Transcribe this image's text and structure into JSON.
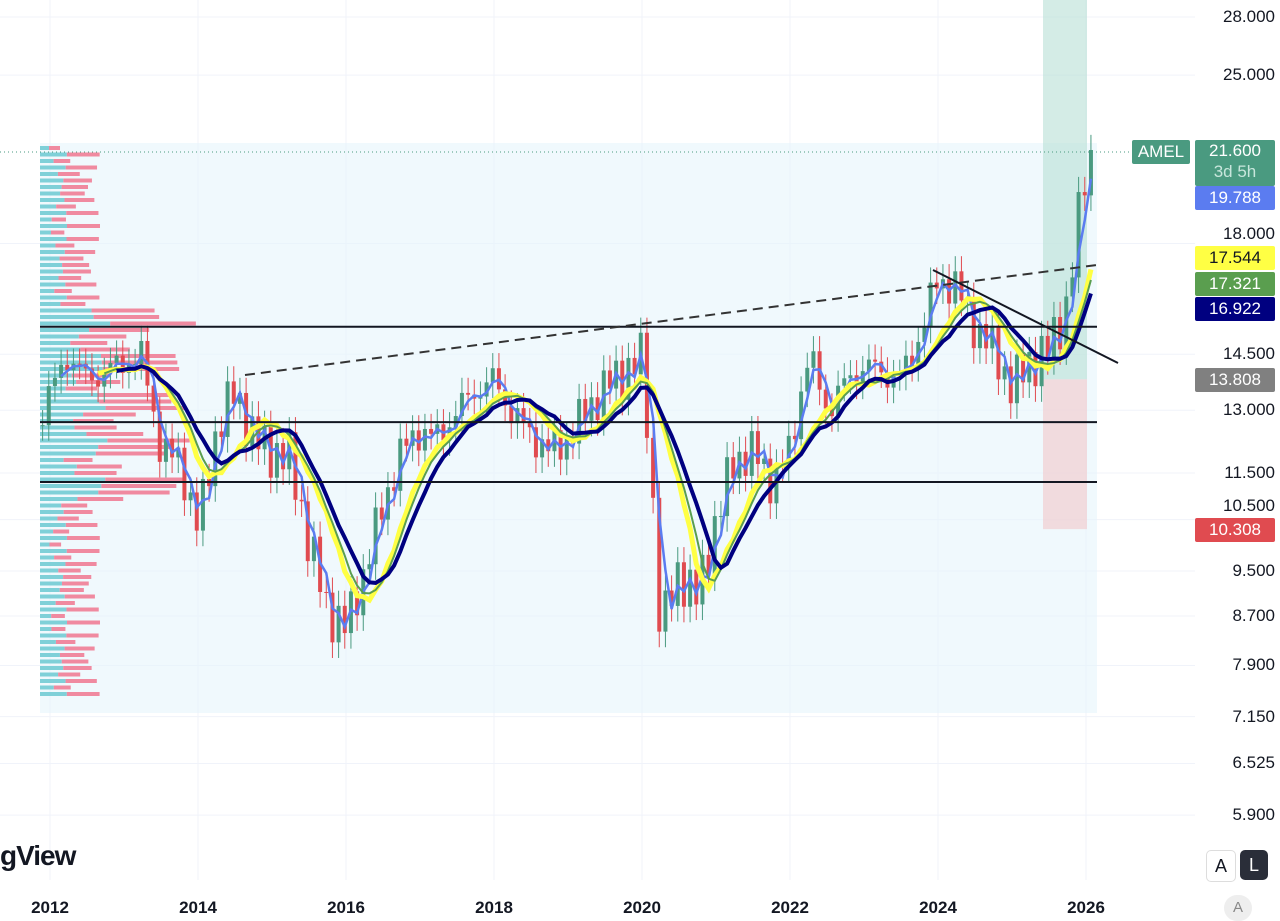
{
  "symbol": "AMEL",
  "last_price": "21.600",
  "countdown": "3d 5h",
  "brand": "gView",
  "buttons": {
    "auto": "A",
    "log": "L",
    "auto_bottom": "A"
  },
  "ma_tags": [
    {
      "value": "19.788",
      "bg": "#5b7cf0",
      "fg": "#ffffff"
    },
    {
      "value": "17.544",
      "bg": "#ffff44",
      "fg": "#131722"
    },
    {
      "value": "17.321",
      "bg": "#5a9e4f",
      "fg": "#ffffff"
    },
    {
      "value": "16.922",
      "bg": "#000080",
      "fg": "#ffffff"
    }
  ],
  "position_tags": [
    {
      "value": "13.808",
      "bg": "#808080"
    },
    {
      "value": "10.308",
      "bg": "#e04b50"
    }
  ],
  "chart_data": {
    "type": "candlestick",
    "scale": "log",
    "y_ticks": [
      "28.000",
      "25.000",
      "18.000",
      "14.500",
      "13.000",
      "11.500",
      "10.500",
      "9.500",
      "8.700",
      "7.900",
      "7.150",
      "6.525",
      "5.900"
    ],
    "y_tick_values": [
      28,
      25,
      18,
      14.5,
      13,
      11.5,
      10.5,
      9.5,
      8.7,
      7.9,
      7.15,
      6.525,
      5.9
    ],
    "x_ticks": [
      "2012",
      "2014",
      "2016",
      "2018",
      "2020",
      "2022",
      "2024",
      "2026"
    ],
    "x_tick_values": [
      2012,
      2014,
      2016,
      2018,
      2020,
      2022,
      2024,
      2026
    ],
    "close_path_t": [
      2011.9,
      2012.25,
      2012.5,
      2012.75,
      2013.0,
      2013.25,
      2013.5,
      2013.75,
      2014.0,
      2014.25,
      2014.5,
      2014.75,
      2015.0,
      2015.25,
      2015.5,
      2015.75,
      2016.0,
      2016.25,
      2016.5,
      2016.75,
      2017.0,
      2017.25,
      2017.5,
      2017.75,
      2018.0,
      2018.25,
      2018.5,
      2018.75,
      2019.0,
      2019.25,
      2019.5,
      2019.75,
      2020.0,
      2020.25,
      2020.5,
      2020.75,
      2021.0,
      2021.25,
      2021.5,
      2021.75,
      2022.0,
      2022.25,
      2022.5,
      2022.75,
      2023.0,
      2023.25,
      2023.5,
      2023.75,
      2024.0,
      2024.25,
      2024.5,
      2024.75,
      2025.0,
      2025.25,
      2025.5,
      2025.75,
      2026.0,
      2026.08
    ],
    "close_path": [
      13.0,
      14.5,
      13.8,
      14.0,
      14.3,
      14.4,
      12.0,
      11.8,
      10.3,
      12.5,
      13.5,
      12.3,
      12.0,
      11.8,
      10.0,
      8.8,
      8.5,
      9.5,
      10.8,
      12.0,
      12.5,
      12.3,
      13.0,
      13.5,
      13.8,
      12.9,
      12.4,
      12.0,
      12.3,
      13.0,
      13.6,
      14.0,
      14.4,
      8.4,
      9.5,
      9.0,
      10.5,
      11.8,
      12.0,
      11.3,
      12.0,
      14.5,
      13.0,
      13.7,
      14.2,
      14.0,
      13.8,
      15.0,
      16.8,
      16.5,
      15.3,
      14.6,
      13.6,
      14.3,
      14.6,
      16.0,
      20.8,
      21.6
    ],
    "horizontal_levels": [
      15.3,
      12.7,
      11.3
    ],
    "position": {
      "entry": 13.808,
      "target": 21.6,
      "stop": 10.308
    },
    "moving_averages": [
      {
        "color": "#5b7cf0",
        "len": 3,
        "last": 19.788
      },
      {
        "color": "#ffff44",
        "len": 9,
        "last": 17.544
      },
      {
        "color": "#5a9e4f",
        "len": 10,
        "last": 17.321
      },
      {
        "color": "#000080",
        "len": 12,
        "last": 16.922
      }
    ]
  }
}
